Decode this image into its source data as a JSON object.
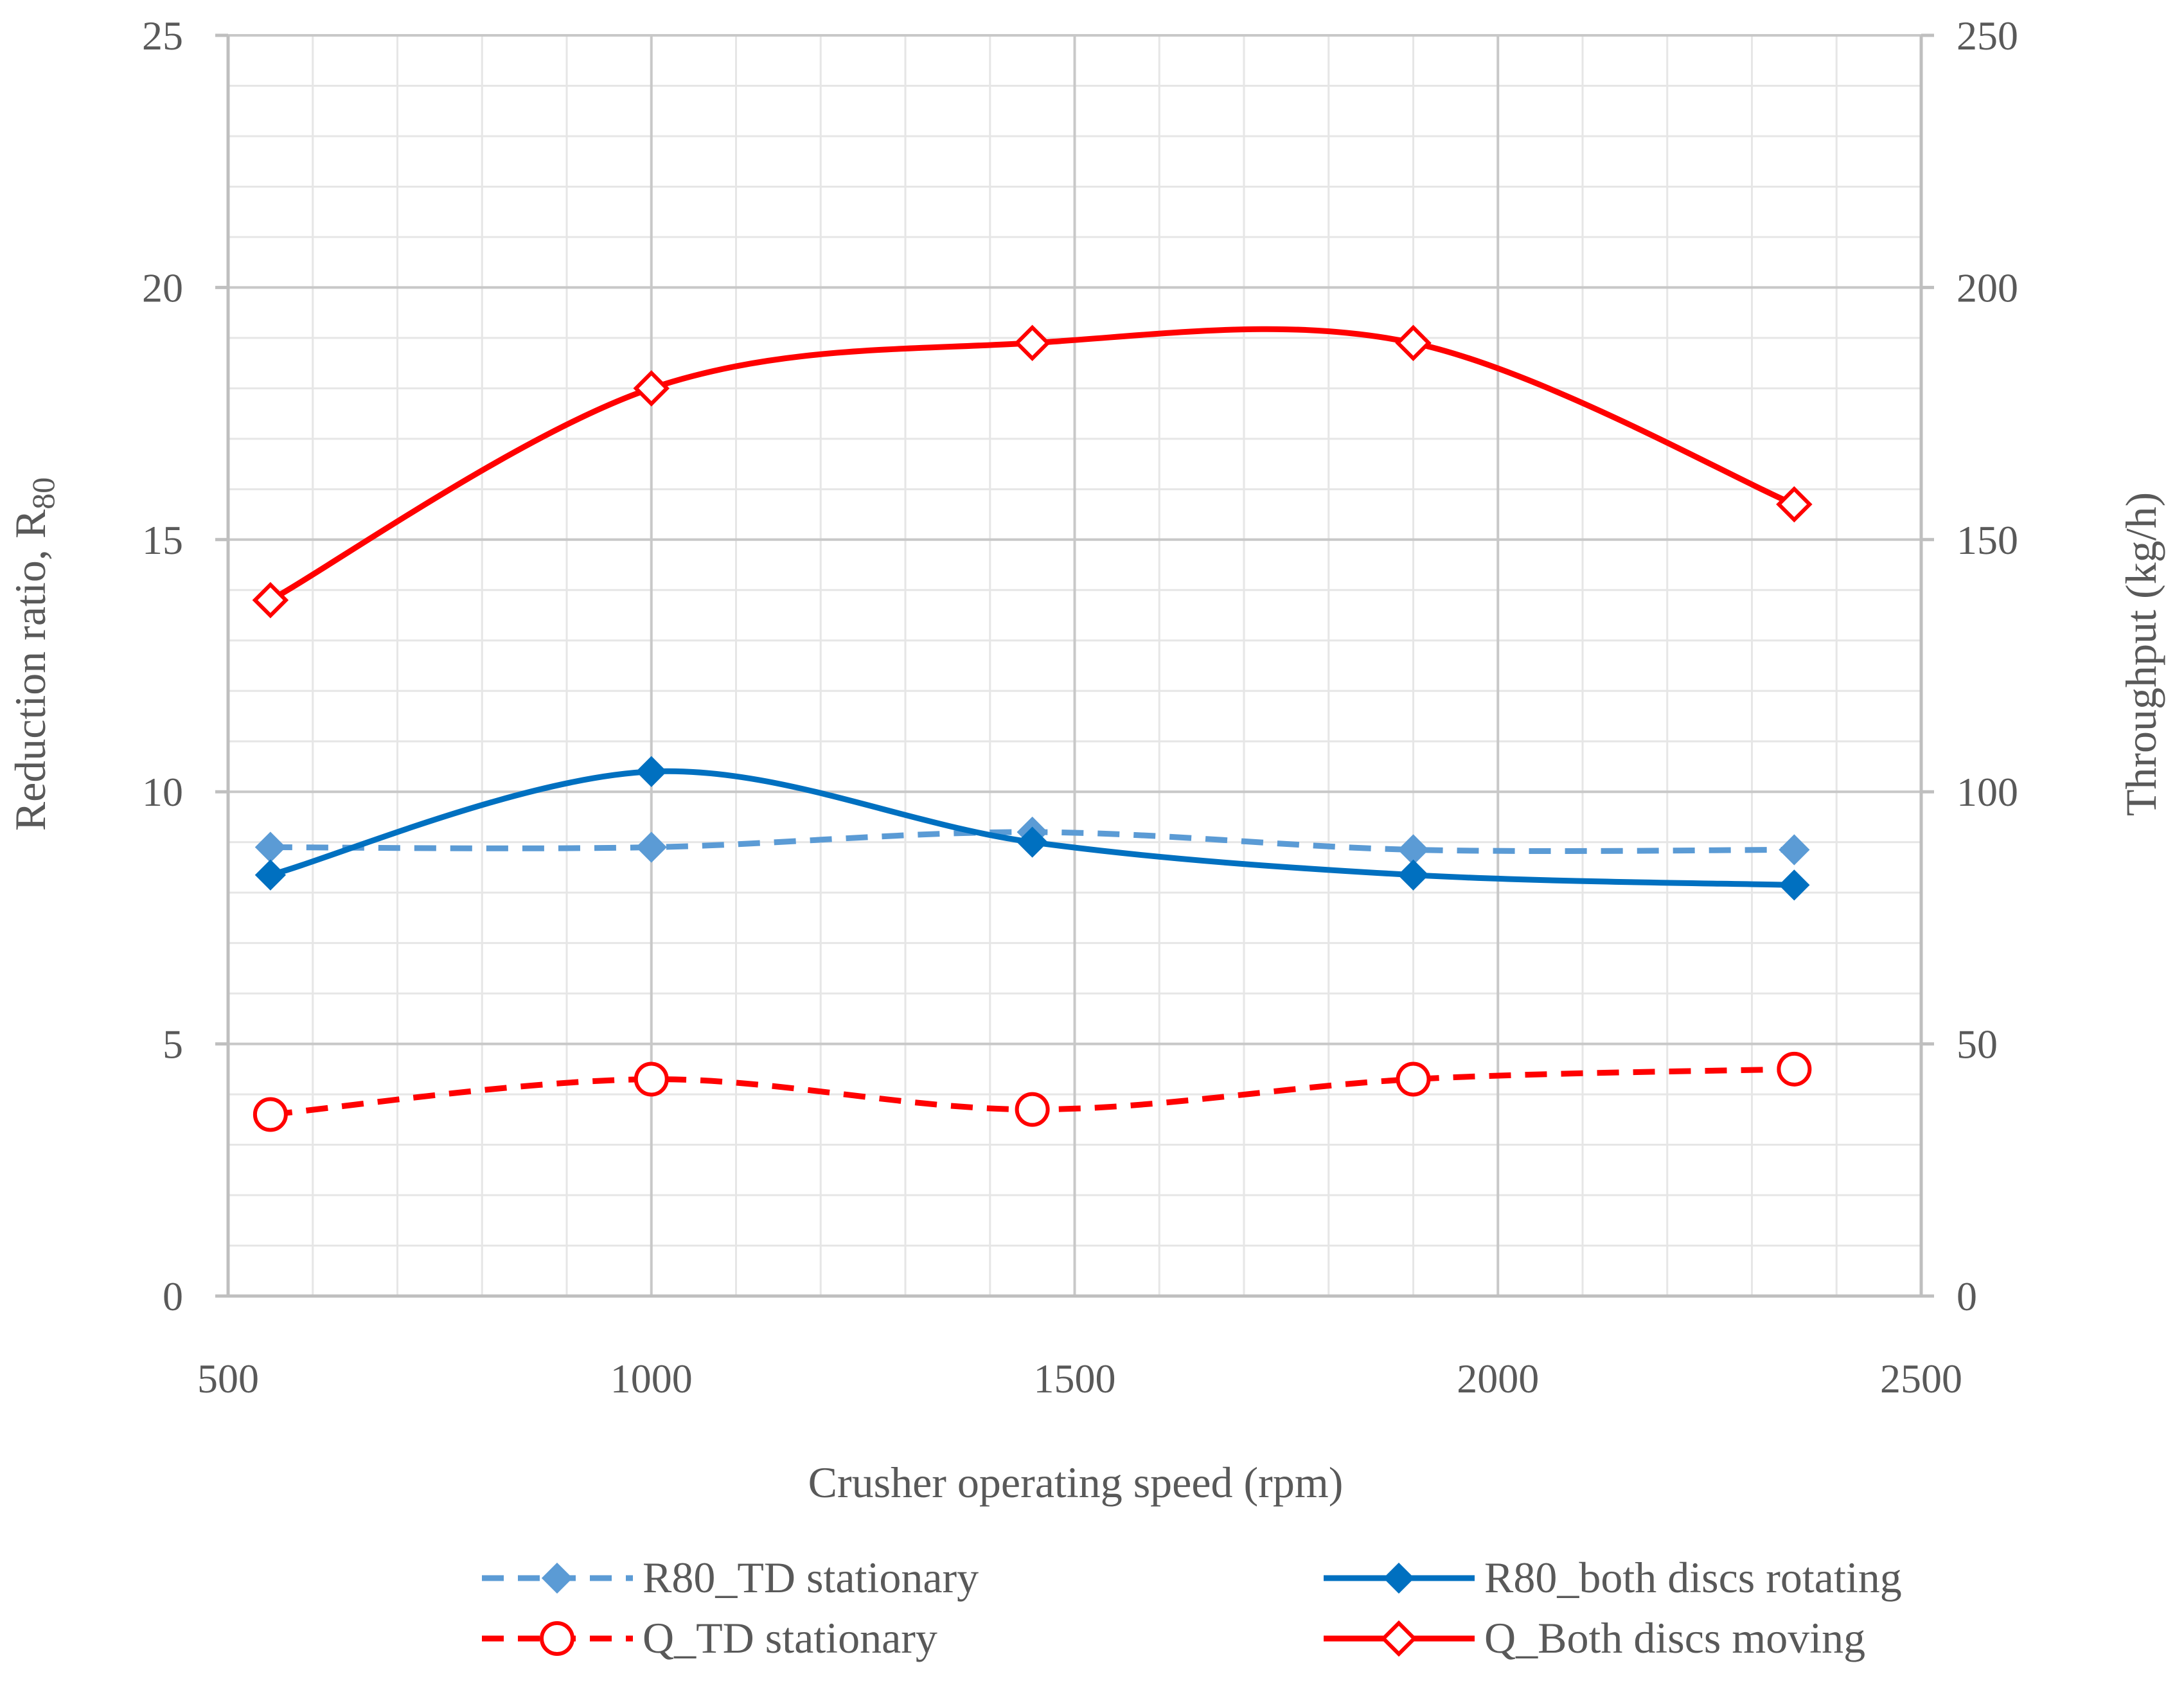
{
  "chart_data": {
    "type": "line",
    "title": "",
    "xlabel": "Crusher operating speed (rpm)",
    "ylabel_left": {
      "main": "Reduction ratio, R",
      "sub": "80"
    },
    "ylabel_right": "Throughput (kg/h)",
    "xlim": [
      500,
      2500
    ],
    "ylim_left": [
      0,
      25
    ],
    "ylim_right": [
      0,
      250
    ],
    "x_ticks": [
      500,
      1000,
      1500,
      2000,
      2500
    ],
    "y_ticks_left": [
      0,
      5,
      10,
      15,
      20,
      25
    ],
    "y_ticks_right": [
      0,
      50,
      100,
      150,
      200,
      250
    ],
    "x_tick_labels": [
      "500",
      "1000",
      "1500",
      "2000",
      "2500"
    ],
    "y_tick_labels_left": [
      "0",
      "5",
      "10",
      "15",
      "20",
      "25"
    ],
    "y_tick_labels_right": [
      "0",
      "50",
      "100",
      "150",
      "200",
      "250"
    ],
    "x_minor_step": 100,
    "y_minor_step_left": 1,
    "grid": true,
    "legend_position": "bottom",
    "x": [
      550,
      1000,
      1450,
      1900,
      2350
    ],
    "series": [
      {
        "name": "R80_TD stationary",
        "axis": "left",
        "values": [
          8.9,
          8.9,
          9.2,
          8.85,
          8.85
        ],
        "color": "#5B9BD5",
        "dashed": true,
        "marker": "diamond-filled"
      },
      {
        "name": "R80_both discs rotating",
        "axis": "left",
        "values": [
          8.35,
          10.4,
          9.0,
          8.35,
          8.15
        ],
        "color": "#0070C0",
        "dashed": false,
        "marker": "diamond-filled"
      },
      {
        "name": "Q_TD stationary",
        "axis": "right",
        "values": [
          36,
          43,
          37,
          43,
          45
        ],
        "color": "#FF0000",
        "dashed": true,
        "marker": "circle-open"
      },
      {
        "name": "Q_Both discs moving",
        "axis": "right",
        "values": [
          138,
          180,
          189,
          189,
          157
        ],
        "color": "#FF0000",
        "dashed": false,
        "marker": "diamond-open"
      }
    ],
    "colors": {
      "grid_major": "#C8C8C8",
      "grid_minor": "#E6E6E6",
      "axis_line": "#BFBFBF",
      "text": "#595959"
    }
  }
}
